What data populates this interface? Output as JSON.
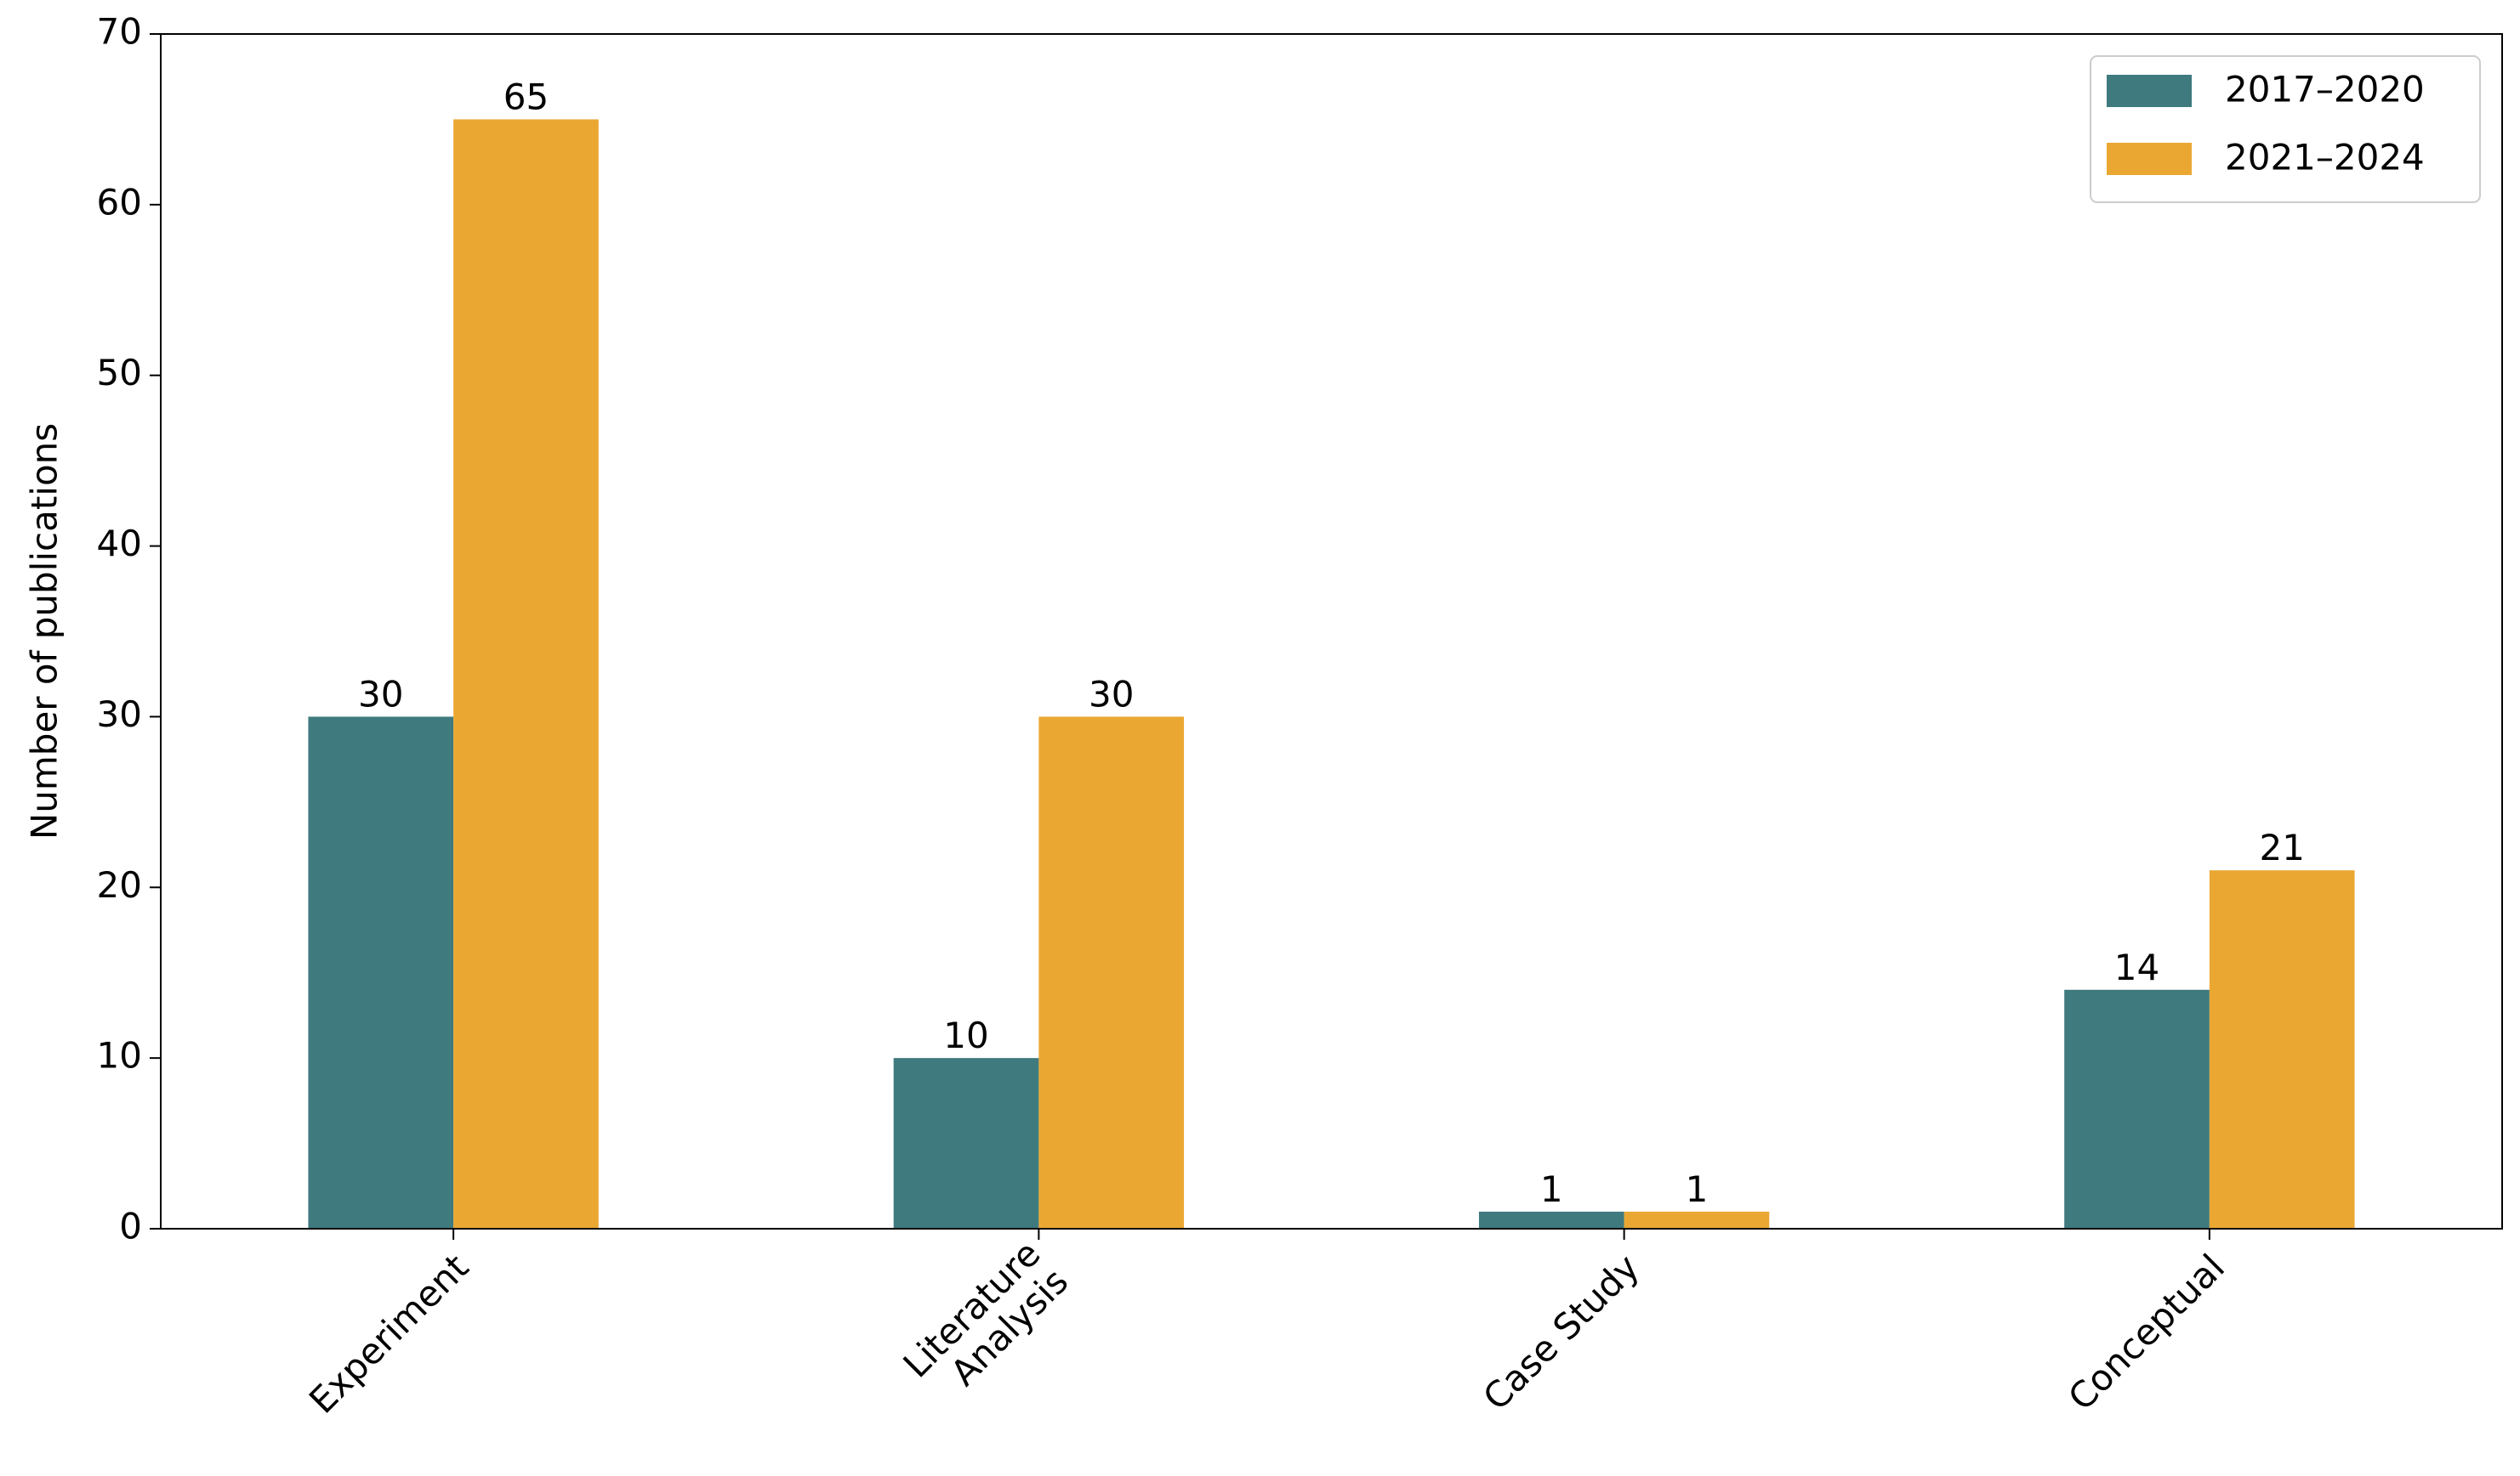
{
  "chart_data": {
    "type": "bar",
    "y_label": "Number of publications",
    "categories": [
      "Experiment",
      "Literature\nAnalysis",
      "Case Study",
      "Conceptual"
    ],
    "series": [
      {
        "name": "2017–2020",
        "color": "#3f7a7e",
        "values": [
          30,
          10,
          1,
          14
        ]
      },
      {
        "name": "2021–2024",
        "color": "#eaa833",
        "values": [
          65,
          30,
          1,
          21
        ]
      }
    ],
    "ylim": [
      0,
      70
    ],
    "yticks": [
      0,
      10,
      20,
      30,
      40,
      50,
      60,
      70
    ],
    "grid": false,
    "legend": "upper right"
  }
}
